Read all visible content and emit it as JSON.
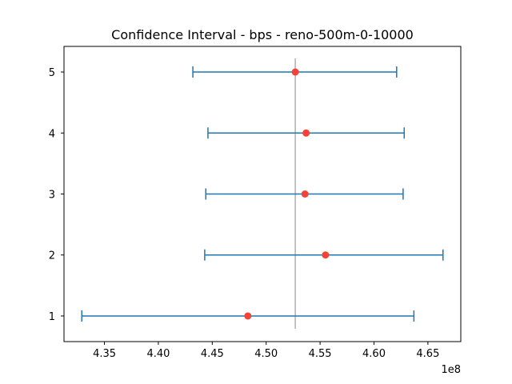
{
  "chart_data": {
    "type": "scatter",
    "title": "Confidence Interval - bps - reno-500m-0-10000",
    "xlabel": "",
    "ylabel": "",
    "x_offset_text": "1e8",
    "xlim": [
      4.3125,
      4.6805
    ],
    "ylim": [
      0.58,
      5.42
    ],
    "x_ticks": [
      4.35,
      4.4,
      4.45,
      4.5,
      4.55,
      4.6,
      4.65
    ],
    "x_tick_labels": [
      "4.35",
      "4.40",
      "4.45",
      "4.50",
      "4.55",
      "4.60",
      "4.65"
    ],
    "y_ticks": [
      1,
      2,
      3,
      4,
      5
    ],
    "y_tick_labels": [
      "1",
      "2",
      "3",
      "4",
      "5"
    ],
    "reference_line_x": 4.527,
    "series": [
      {
        "points": [
          {
            "y": 1,
            "mean": 4.483,
            "low": 4.329,
            "high": 4.637
          },
          {
            "y": 2,
            "mean": 4.555,
            "low": 4.443,
            "high": 4.664
          },
          {
            "y": 3,
            "mean": 4.536,
            "low": 4.444,
            "high": 4.627
          },
          {
            "y": 4,
            "mean": 4.537,
            "low": 4.446,
            "high": 4.628
          },
          {
            "y": 5,
            "mean": 4.527,
            "low": 4.432,
            "high": 4.621
          }
        ]
      }
    ],
    "colors": {
      "interval": "#1f77b4",
      "mean": "#f44336",
      "reference": "#b0b0b0",
      "axes": "#000000"
    },
    "grid": false
  }
}
